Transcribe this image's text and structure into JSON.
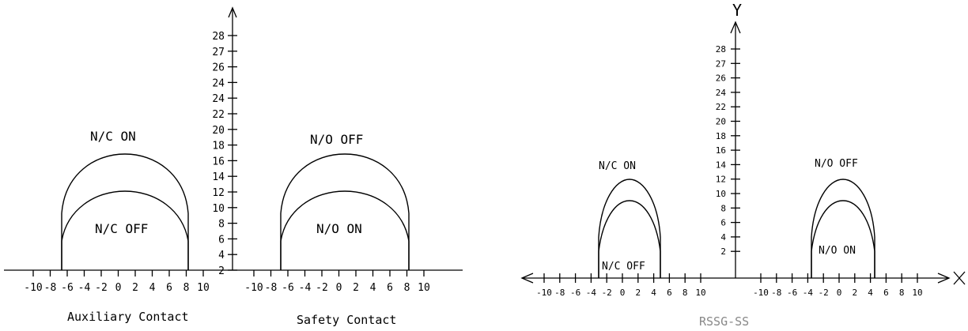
{
  "diagram_left": {
    "y_ticks": [
      "28",
      "27",
      "26",
      "24",
      "24",
      "22",
      "20",
      "18",
      "16",
      "14",
      "12",
      "10",
      "8",
      "6",
      "4",
      "2"
    ],
    "x_ticks_left": [
      "-10",
      "-8",
      "-6",
      "-4",
      "-2",
      "0",
      "2",
      "4",
      "6",
      "8",
      "10"
    ],
    "x_ticks_right": [
      "-10",
      "-8",
      "-6",
      "-4",
      "-2",
      "0",
      "2",
      "4",
      "6",
      "8",
      "10"
    ],
    "labels": {
      "nc_on": "N/C ON",
      "nc_off": "N/C OFF",
      "no_off": "N/O OFF",
      "no_on": "N/O ON",
      "aux_caption": "Auxiliary Contact",
      "safety_caption": "Safety Contact"
    }
  },
  "diagram_right": {
    "y_axis_label": "Y",
    "x_axis_label": "X",
    "y_ticks": [
      "28",
      "27",
      "26",
      "24",
      "22",
      "20",
      "18",
      "16",
      "14",
      "12",
      "10",
      "8",
      "6",
      "4",
      "2"
    ],
    "x_ticks_left": [
      "-10",
      "-8",
      "-6",
      "-4",
      "-2",
      "0",
      "2",
      "4",
      "6",
      "8",
      "10"
    ],
    "x_ticks_right": [
      "-10",
      "-8",
      "-6",
      "-4",
      "-2",
      "0",
      "2",
      "4",
      "6",
      "8",
      "10"
    ],
    "labels": {
      "nc_on": "N/C ON",
      "nc_off": "N/C OFF",
      "no_off": "N/O OFF",
      "no_on": "N/O ON",
      "caption": "RSSG-SS"
    }
  }
}
